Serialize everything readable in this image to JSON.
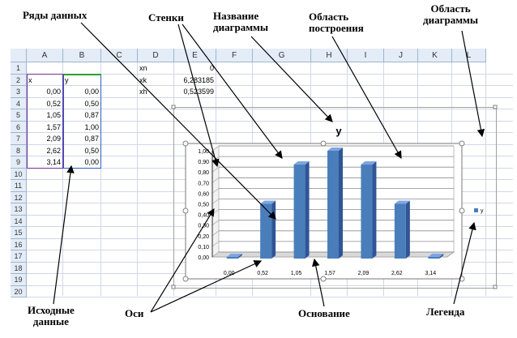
{
  "spreadsheet": {
    "columns": [
      "A",
      "B",
      "C",
      "D",
      "E",
      "F",
      "G",
      "H",
      "I",
      "J",
      "K",
      "L"
    ],
    "rows": [
      "1",
      "2",
      "3",
      "4",
      "5",
      "6",
      "7",
      "8",
      "9",
      "10",
      "11",
      "12",
      "13",
      "14",
      "15",
      "16",
      "17",
      "18",
      "19",
      "20"
    ],
    "headers": {
      "a2": "x",
      "b2": "y"
    },
    "x_values": [
      "0,00",
      "0,52",
      "1,05",
      "1,57",
      "2,09",
      "2,62",
      "3,14"
    ],
    "y_values": [
      "0,00",
      "0,50",
      "0,87",
      "1,00",
      "0,87",
      "0,50",
      "0,00"
    ],
    "params": [
      {
        "name": "xn",
        "value": "0"
      },
      {
        "name": "xk",
        "value": "6,283185"
      },
      {
        "name": "xh",
        "value": "0,523599"
      }
    ]
  },
  "chart_data": {
    "type": "bar",
    "title": "y",
    "categories": [
      "0,00",
      "0,52",
      "1,05",
      "1,57",
      "2,09",
      "2,62",
      "3,14"
    ],
    "series": [
      {
        "name": "y",
        "values": [
          0.0,
          0.5,
          0.87,
          1.0,
          0.87,
          0.5,
          0.0
        ]
      }
    ],
    "y_ticks": [
      "0,00",
      "0,10",
      "0,20",
      "0,30",
      "0,40",
      "0,50",
      "0,60",
      "0,70",
      "0,80",
      "0,90",
      "1,00"
    ],
    "ylim": [
      0,
      1.0
    ],
    "legend": "right",
    "bar_color": "#4a7ebb",
    "grid": true
  },
  "annotations": {
    "data_series": "Ряды данных",
    "walls": "Стенки",
    "chart_title_1": "Название",
    "chart_title_2": "диаграммы",
    "plot_area_1": "Область",
    "plot_area_2": "построения",
    "chart_area_1": "Область",
    "chart_area_2": "диаграммы",
    "source_1": "Исходные",
    "source_2": "данные",
    "axes": "Оси",
    "floor": "Основание",
    "legend": "Легенда"
  }
}
